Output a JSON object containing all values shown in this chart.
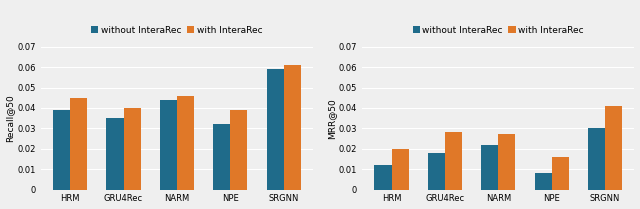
{
  "categories": [
    "HRM",
    "GRU4Rec",
    "NARM",
    "NPE",
    "SRGNN"
  ],
  "recall_without": [
    0.039,
    0.035,
    0.044,
    0.032,
    0.059
  ],
  "recall_with": [
    0.045,
    0.04,
    0.046,
    0.039,
    0.061
  ],
  "mrr_without": [
    0.012,
    0.018,
    0.022,
    0.008,
    0.03
  ],
  "mrr_with": [
    0.02,
    0.028,
    0.027,
    0.016,
    0.041
  ],
  "ylabel_left": "Recall@50",
  "ylabel_right": "MRR@50",
  "ylim_left": [
    0,
    0.07
  ],
  "ylim_right": [
    0,
    0.07
  ],
  "yticks": [
    0,
    0.01,
    0.02,
    0.03,
    0.04,
    0.05,
    0.06,
    0.07
  ],
  "ytick_labels": [
    "0",
    "0.01",
    "0.02",
    "0.03",
    "0.04",
    "0.05",
    "0.06",
    "0.07"
  ],
  "color_without": "#1f6b8a",
  "color_with": "#e07828",
  "legend_without": "without InteraRec",
  "legend_with": "with InteraRec",
  "bar_width": 0.32,
  "background_color": "#efefef",
  "plot_bg_color": "#efefef",
  "grid_color": "#ffffff",
  "tick_fontsize": 6,
  "label_fontsize": 6.5,
  "legend_fontsize": 6.5
}
